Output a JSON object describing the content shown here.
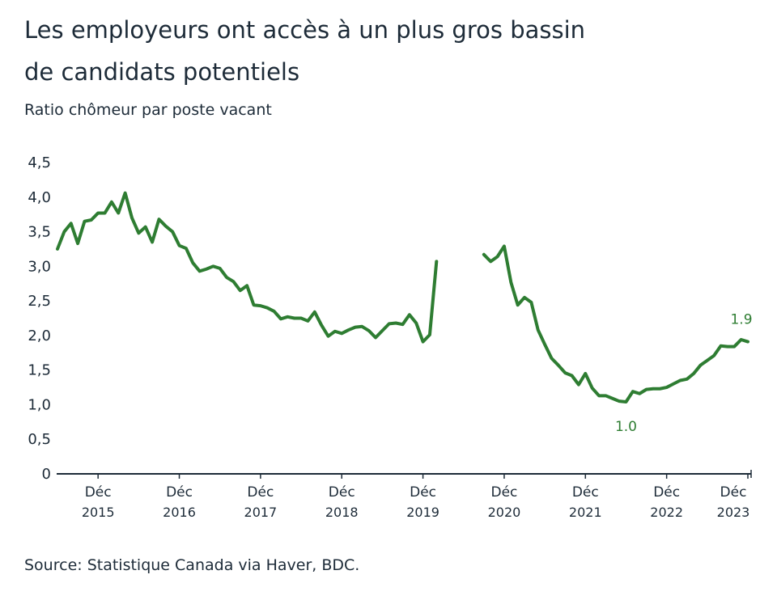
{
  "chart_data": {
    "type": "line",
    "title": [
      "Les employeurs ont accès à un plus gros bassin",
      "de candidats potentiels"
    ],
    "subtitle": "Ratio chômeur par poste vacant",
    "source": "Source: Statistique Canada via Haver, BDC.",
    "color": "#2e7d32",
    "categories": [
      null,
      null,
      null,
      null,
      null,
      null,
      [
        "Déc",
        "2015"
      ],
      null,
      null,
      null,
      null,
      null,
      null,
      null,
      null,
      null,
      null,
      null,
      [
        "Déc",
        "2016"
      ],
      null,
      null,
      null,
      null,
      null,
      null,
      null,
      null,
      null,
      null,
      null,
      [
        "Déc",
        "2017"
      ],
      null,
      null,
      null,
      null,
      null,
      null,
      null,
      null,
      null,
      null,
      null,
      [
        "Déc",
        "2018"
      ],
      null,
      null,
      null,
      null,
      null,
      null,
      null,
      null,
      null,
      null,
      null,
      [
        "Déc",
        "2019"
      ],
      null,
      null,
      null,
      null,
      null,
      null,
      null,
      null,
      null,
      null,
      null,
      [
        "Déc",
        "2020"
      ],
      null,
      null,
      null,
      null,
      null,
      null,
      null,
      null,
      null,
      null,
      null,
      [
        "Déc",
        "2021"
      ],
      null,
      null,
      null,
      null,
      null,
      null,
      null,
      null,
      null,
      null,
      null,
      [
        "Déc",
        "2022"
      ],
      null,
      null,
      null,
      null,
      null,
      null,
      null,
      null,
      null,
      null,
      null,
      [
        "Déc",
        "2023"
      ]
    ],
    "values": [
      3.25,
      3.5,
      3.62,
      3.33,
      3.65,
      3.67,
      3.77,
      3.77,
      3.93,
      3.77,
      4.06,
      3.7,
      3.48,
      3.57,
      3.35,
      3.68,
      3.58,
      3.5,
      3.3,
      3.26,
      3.05,
      2.93,
      2.96,
      3.0,
      2.97,
      2.84,
      2.78,
      2.65,
      2.72,
      2.44,
      2.43,
      2.4,
      2.35,
      2.24,
      2.27,
      2.25,
      2.25,
      2.21,
      2.34,
      2.15,
      1.99,
      2.06,
      2.03,
      2.08,
      2.12,
      2.13,
      2.07,
      1.97,
      2.07,
      2.17,
      2.18,
      2.16,
      2.3,
      2.18,
      1.91,
      2.01,
      3.07,
      null,
      null,
      null,
      null,
      null,
      null,
      3.17,
      3.07,
      3.14,
      3.29,
      2.77,
      2.44,
      2.55,
      2.48,
      2.08,
      1.87,
      1.67,
      1.57,
      1.46,
      1.42,
      1.29,
      1.45,
      1.24,
      1.13,
      1.13,
      1.09,
      1.05,
      1.04,
      1.19,
      1.16,
      1.22,
      1.23,
      1.23,
      1.25,
      1.3,
      1.35,
      1.37,
      1.45,
      1.57,
      1.64,
      1.71,
      1.85,
      1.84,
      1.84,
      1.94,
      1.91
    ],
    "value_labels": [
      null,
      null,
      null,
      null,
      null,
      null,
      null,
      null,
      null,
      null,
      null,
      null,
      null,
      null,
      null,
      null,
      null,
      null,
      null,
      null,
      null,
      null,
      null,
      null,
      null,
      null,
      null,
      null,
      null,
      null,
      null,
      null,
      null,
      null,
      null,
      null,
      null,
      null,
      null,
      null,
      null,
      null,
      null,
      null,
      null,
      null,
      null,
      null,
      null,
      null,
      null,
      null,
      null,
      null,
      null,
      null,
      null,
      null,
      null,
      null,
      null,
      null,
      null,
      null,
      null,
      null,
      null,
      null,
      null,
      null,
      null,
      null,
      null,
      null,
      null,
      null,
      null,
      null,
      null,
      null,
      null,
      null,
      null,
      null,
      "1.0",
      null,
      null,
      null,
      null,
      null,
      null,
      null,
      null,
      null,
      null,
      null,
      null,
      null,
      null,
      null,
      null,
      null,
      "1.9"
    ],
    "ylim": [
      0,
      4.5
    ],
    "yticks": [
      0,
      {
        "value": 0.5,
        "label": "0,5"
      },
      {
        "value": 1,
        "label": "1,0"
      },
      {
        "value": 1.5,
        "label": "1,5"
      },
      {
        "value": 2,
        "label": "2,0"
      },
      {
        "value": 2.5,
        "label": "2,5"
      },
      {
        "value": 3,
        "label": "3,0"
      },
      {
        "value": 3.5,
        "label": "3,5"
      },
      {
        "value": 4,
        "label": "4,0"
      },
      {
        "value": 4.5,
        "label": "4,5"
      }
    ]
  }
}
